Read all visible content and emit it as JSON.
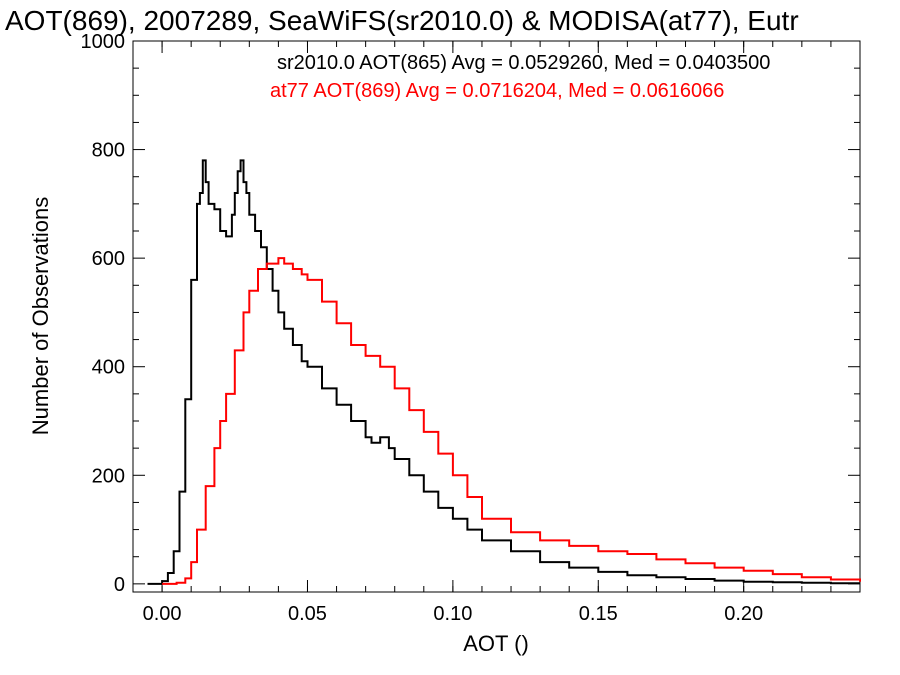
{
  "chart_data": {
    "type": "line",
    "title": "AOT(869), 2007289, SeaWiFS(sr2010.0) & MODISA(at77), Eutr",
    "xlabel": "AOT ()",
    "ylabel": "Number of Observations",
    "xlim": [
      -0.01,
      0.24
    ],
    "ylim": [
      -15,
      1000
    ],
    "x_ticks": [
      0.0,
      0.05,
      0.1,
      0.15,
      0.2
    ],
    "x_tick_labels": [
      "0.00",
      "0.05",
      "0.10",
      "0.15",
      "0.20"
    ],
    "y_ticks": [
      0,
      200,
      400,
      600,
      800,
      1000
    ],
    "y_tick_labels": [
      "0",
      "200",
      "400",
      "600",
      "800",
      "1000"
    ],
    "grid": false,
    "legend_position": "top-right",
    "series": [
      {
        "name": "sr2010.0 AOT(865) Avg = 0.0529260, Med = 0.0403500",
        "color": "#000000",
        "x": [
          -0.005,
          0.0,
          0.002,
          0.004,
          0.006,
          0.008,
          0.01,
          0.012,
          0.013,
          0.014,
          0.015,
          0.016,
          0.018,
          0.02,
          0.022,
          0.024,
          0.025,
          0.026,
          0.027,
          0.028,
          0.029,
          0.03,
          0.032,
          0.034,
          0.036,
          0.038,
          0.04,
          0.042,
          0.045,
          0.048,
          0.05,
          0.055,
          0.06,
          0.065,
          0.07,
          0.072,
          0.075,
          0.078,
          0.08,
          0.085,
          0.09,
          0.095,
          0.1,
          0.105,
          0.11,
          0.12,
          0.13,
          0.14,
          0.15,
          0.16,
          0.17,
          0.18,
          0.19,
          0.2,
          0.21,
          0.22,
          0.23,
          0.24
        ],
        "values": [
          0,
          5,
          20,
          60,
          170,
          340,
          560,
          700,
          720,
          780,
          740,
          700,
          690,
          650,
          640,
          680,
          720,
          760,
          780,
          740,
          720,
          680,
          650,
          620,
          580,
          540,
          500,
          470,
          440,
          410,
          400,
          360,
          330,
          300,
          270,
          260,
          270,
          250,
          230,
          200,
          170,
          140,
          120,
          100,
          80,
          60,
          40,
          30,
          22,
          16,
          12,
          9,
          6,
          4,
          3,
          2,
          1,
          1
        ]
      },
      {
        "name": "at77 AOT(869) Avg = 0.0716204, Med = 0.0616066",
        "color": "#ff0000",
        "x": [
          0.0,
          0.005,
          0.008,
          0.01,
          0.012,
          0.015,
          0.018,
          0.02,
          0.022,
          0.025,
          0.028,
          0.03,
          0.033,
          0.036,
          0.04,
          0.042,
          0.045,
          0.048,
          0.05,
          0.055,
          0.06,
          0.065,
          0.07,
          0.075,
          0.08,
          0.085,
          0.09,
          0.095,
          0.1,
          0.105,
          0.11,
          0.12,
          0.13,
          0.14,
          0.15,
          0.16,
          0.17,
          0.18,
          0.19,
          0.2,
          0.21,
          0.22,
          0.23,
          0.24
        ],
        "values": [
          0,
          2,
          10,
          40,
          100,
          180,
          250,
          300,
          350,
          430,
          500,
          540,
          580,
          590,
          600,
          590,
          580,
          570,
          560,
          520,
          480,
          440,
          420,
          400,
          360,
          320,
          280,
          240,
          200,
          160,
          120,
          95,
          80,
          70,
          60,
          55,
          45,
          38,
          30,
          24,
          18,
          12,
          8,
          4
        ]
      }
    ]
  }
}
